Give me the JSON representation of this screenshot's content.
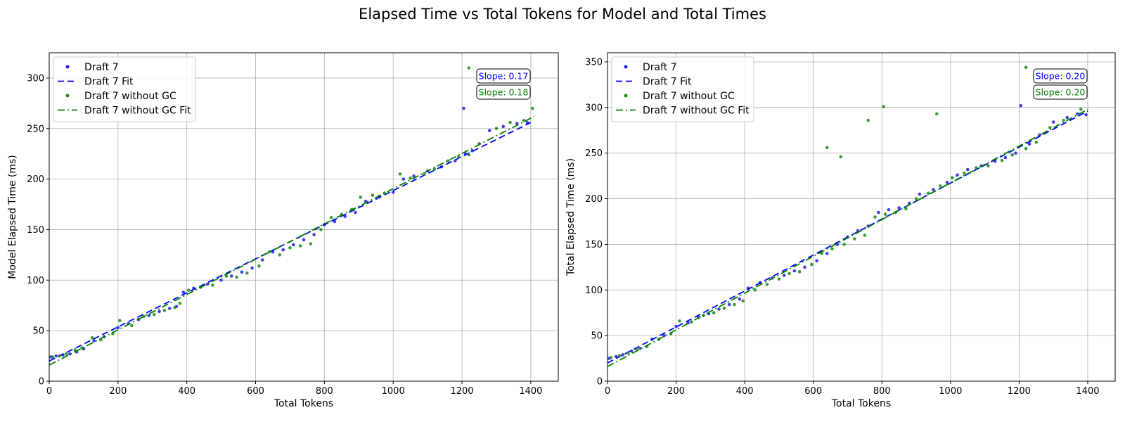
{
  "figure_title": "Elapsed Time vs Total Tokens for Model and Total Times",
  "colors": {
    "draft7": "#1f1fe6",
    "draft7_fit": "#0000ff",
    "without_gc": "#1a8a1a",
    "without_gc_fit": "#008000",
    "grid": "#b0b0b0"
  },
  "chart_data": [
    {
      "type": "scatter",
      "title": "",
      "xlabel": "Total Tokens",
      "ylabel": "Model Elapsed Time (ms)",
      "xlim": [
        0,
        1480
      ],
      "ylim": [
        0,
        325
      ],
      "xticks": [
        0,
        200,
        400,
        600,
        800,
        1000,
        1200,
        1400
      ],
      "yticks": [
        0,
        50,
        100,
        150,
        200,
        250,
        300
      ],
      "grid": true,
      "legend_position": "top-left",
      "legend": [
        "Draft 7",
        "Draft 7 Fit",
        "Draft 7 without GC",
        "Draft 7 without GC Fit"
      ],
      "annotations": [
        "Slope: 0.17",
        "Slope: 0.18"
      ],
      "series": [
        {
          "name": "Draft 7",
          "marker": "dot",
          "points": [
            [
              5,
              24
            ],
            [
              20,
              25
            ],
            [
              40,
              26
            ],
            [
              60,
              27
            ],
            [
              80,
              29
            ],
            [
              100,
              32
            ],
            [
              130,
              40
            ],
            [
              160,
              44
            ],
            [
              200,
              53
            ],
            [
              230,
              57
            ],
            [
              260,
              61
            ],
            [
              290,
              65
            ],
            [
              320,
              69
            ],
            [
              350,
              72
            ],
            [
              370,
              74
            ],
            [
              390,
              88
            ],
            [
              420,
              92
            ],
            [
              460,
              96
            ],
            [
              500,
              100
            ],
            [
              530,
              104
            ],
            [
              560,
              108
            ],
            [
              590,
              112
            ],
            [
              620,
              120
            ],
            [
              650,
              128
            ],
            [
              680,
              130
            ],
            [
              710,
              135
            ],
            [
              740,
              140
            ],
            [
              770,
              145
            ],
            [
              800,
              155
            ],
            [
              830,
              158
            ],
            [
              860,
              163
            ],
            [
              890,
              167
            ],
            [
              920,
              178
            ],
            [
              960,
              183
            ],
            [
              1000,
              187
            ],
            [
              1030,
              200
            ],
            [
              1060,
              203
            ],
            [
              1100,
              208
            ],
            [
              1140,
              212
            ],
            [
              1180,
              218
            ],
            [
              1210,
              225
            ],
            [
              1230,
              228
            ],
            [
              1280,
              248
            ],
            [
              1320,
              252
            ],
            [
              1360,
              255
            ],
            [
              1390,
              256
            ],
            [
              1205,
              270
            ]
          ]
        },
        {
          "name": "Draft 7 Fit",
          "line": "dashed",
          "points": [
            [
              0,
              20
            ],
            [
              1400,
              256
            ]
          ]
        },
        {
          "name": "Draft 7 without GC",
          "marker": "dot",
          "points": [
            [
              10,
              24
            ],
            [
              30,
              25
            ],
            [
              50,
              27
            ],
            [
              75,
              31
            ],
            [
              95,
              33
            ],
            [
              125,
              43
            ],
            [
              150,
              41
            ],
            [
              185,
              47
            ],
            [
              205,
              60
            ],
            [
              240,
              55
            ],
            [
              275,
              64
            ],
            [
              305,
              66
            ],
            [
              335,
              70
            ],
            [
              365,
              73
            ],
            [
              380,
              77
            ],
            [
              405,
              90
            ],
            [
              440,
              93
            ],
            [
              475,
              95
            ],
            [
              515,
              104
            ],
            [
              545,
              103
            ],
            [
              575,
              107
            ],
            [
              610,
              114
            ],
            [
              640,
              128
            ],
            [
              670,
              125
            ],
            [
              700,
              132
            ],
            [
              730,
              134
            ],
            [
              760,
              136
            ],
            [
              790,
              150
            ],
            [
              820,
              162
            ],
            [
              850,
              165
            ],
            [
              880,
              170
            ],
            [
              905,
              182
            ],
            [
              940,
              184
            ],
            [
              975,
              186
            ],
            [
              1020,
              205
            ],
            [
              1050,
              201
            ],
            [
              1090,
              205
            ],
            [
              1120,
              210
            ],
            [
              1160,
              218
            ],
            [
              1190,
              222
            ],
            [
              1220,
              224
            ],
            [
              1250,
              235
            ],
            [
              1300,
              250
            ],
            [
              1340,
              256
            ],
            [
              1380,
              258
            ],
            [
              1405,
              270
            ],
            [
              1220,
              310
            ]
          ]
        },
        {
          "name": "Draft 7 without GC Fit",
          "line": "dashdot",
          "points": [
            [
              0,
              16
            ],
            [
              1410,
              262
            ]
          ]
        }
      ]
    },
    {
      "type": "scatter",
      "title": "",
      "xlabel": "Total Tokens",
      "ylabel": "Total Elapsed Time (ms)",
      "xlim": [
        0,
        1480
      ],
      "ylim": [
        0,
        360
      ],
      "xticks": [
        0,
        200,
        400,
        600,
        800,
        1000,
        1200,
        1400
      ],
      "yticks": [
        0,
        50,
        100,
        150,
        200,
        250,
        300,
        350
      ],
      "grid": true,
      "legend_position": "top-left",
      "legend": [
        "Draft 7",
        "Draft 7 Fit",
        "Draft 7 without GC",
        "Draft 7 without GC Fit"
      ],
      "annotations": [
        "Slope: 0.20",
        "Slope: 0.20"
      ],
      "series": [
        {
          "name": "Draft 7",
          "marker": "dot",
          "points": [
            [
              5,
              25
            ],
            [
              25,
              27
            ],
            [
              45,
              29
            ],
            [
              70,
              33
            ],
            [
              95,
              36
            ],
            [
              130,
              46
            ],
            [
              165,
              50
            ],
            [
              200,
              60
            ],
            [
              235,
              64
            ],
            [
              265,
              70
            ],
            [
              295,
              74
            ],
            [
              325,
              79
            ],
            [
              355,
              84
            ],
            [
              385,
              90
            ],
            [
              410,
              102
            ],
            [
              445,
              108
            ],
            [
              480,
              113
            ],
            [
              515,
              116
            ],
            [
              545,
              121
            ],
            [
              575,
              125
            ],
            [
              610,
              132
            ],
            [
              640,
              140
            ],
            [
              670,
              150
            ],
            [
              700,
              158
            ],
            [
              730,
              165
            ],
            [
              760,
              170
            ],
            [
              790,
              185
            ],
            [
              820,
              188
            ],
            [
              850,
              190
            ],
            [
              880,
              195
            ],
            [
              910,
              205
            ],
            [
              950,
              210
            ],
            [
              990,
              218
            ],
            [
              1020,
              226
            ],
            [
              1050,
              232
            ],
            [
              1090,
              236
            ],
            [
              1130,
              241
            ],
            [
              1160,
              245
            ],
            [
              1190,
              250
            ],
            [
              1230,
              260
            ],
            [
              1260,
              270
            ],
            [
              1300,
              284
            ],
            [
              1340,
              289
            ],
            [
              1370,
              293
            ],
            [
              1395,
              292
            ],
            [
              1205,
              302
            ]
          ]
        },
        {
          "name": "Draft 7 Fit",
          "line": "dashed",
          "points": [
            [
              0,
              20
            ],
            [
              1400,
              296
            ]
          ]
        },
        {
          "name": "Draft 7 without GC",
          "marker": "dot",
          "points": [
            [
              10,
              26
            ],
            [
              35,
              28
            ],
            [
              60,
              31
            ],
            [
              85,
              35
            ],
            [
              115,
              38
            ],
            [
              150,
              46
            ],
            [
              185,
              52
            ],
            [
              210,
              66
            ],
            [
              245,
              65
            ],
            [
              280,
              72
            ],
            [
              310,
              75
            ],
            [
              340,
              80
            ],
            [
              370,
              84
            ],
            [
              395,
              88
            ],
            [
              430,
              100
            ],
            [
              465,
              106
            ],
            [
              500,
              112
            ],
            [
              530,
              118
            ],
            [
              560,
              120
            ],
            [
              595,
              128
            ],
            [
              625,
              140
            ],
            [
              655,
              145
            ],
            [
              690,
              150
            ],
            [
              720,
              156
            ],
            [
              750,
              160
            ],
            [
              780,
              180
            ],
            [
              810,
              183
            ],
            [
              840,
              185
            ],
            [
              870,
              189
            ],
            [
              900,
              200
            ],
            [
              935,
              206
            ],
            [
              970,
              214
            ],
            [
              1005,
              223
            ],
            [
              1040,
              228
            ],
            [
              1075,
              234
            ],
            [
              1110,
              236
            ],
            [
              1150,
              242
            ],
            [
              1180,
              248
            ],
            [
              1220,
              255
            ],
            [
              1250,
              262
            ],
            [
              1290,
              278
            ],
            [
              1330,
              286
            ],
            [
              1380,
              298
            ],
            [
              640,
              256
            ],
            [
              680,
              246
            ],
            [
              760,
              286
            ],
            [
              805,
              301
            ],
            [
              960,
              293
            ],
            [
              1220,
              344
            ]
          ]
        },
        {
          "name": "Draft 7 without GC Fit",
          "line": "dashdot",
          "points": [
            [
              0,
              16
            ],
            [
              1400,
              298
            ]
          ]
        }
      ]
    }
  ]
}
